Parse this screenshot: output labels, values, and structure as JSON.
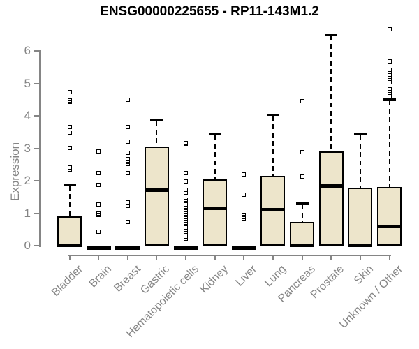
{
  "chart_data": {
    "type": "boxplot",
    "title": "ENSG00000225655 - RP11-143M1.2",
    "ylabel": "Expression",
    "xlabel": "",
    "ylim": [
      0,
      6.7
    ],
    "yticks": [
      0,
      1,
      2,
      3,
      4,
      5,
      6
    ],
    "grid": false,
    "legend": null,
    "colors": {
      "box_fill": "#EDE5CB",
      "box_stroke": "#000000",
      "axis": "#858585",
      "title": "#000000"
    },
    "categories": [
      "Bladder",
      "Brain",
      "Breast",
      "Gastric",
      "Hematopoietic cells",
      "Kidney",
      "Liver",
      "Lung",
      "Pancreas",
      "Prostate",
      "Skin",
      "Unknown / Other"
    ],
    "boxes": [
      {
        "category": "Bladder",
        "q1": 0,
        "median": 0.03,
        "q3": 0.9,
        "whisker_low": 0,
        "whisker_high": 1.9,
        "outliers": [
          2.35,
          2.41,
          3.02,
          3.48,
          3.66,
          4.42,
          4.47,
          4.74
        ]
      },
      {
        "category": "Brain",
        "q1": 0,
        "median": 0.02,
        "q3": 0.04,
        "whisker_low": 0,
        "whisker_high": 0.04,
        "outliers": [
          0.43,
          0.95,
          0.99,
          1.27,
          1.87,
          2.24,
          2.9
        ]
      },
      {
        "category": "Breast",
        "q1": 0,
        "median": 0.02,
        "q3": 0.04,
        "whisker_low": 0,
        "whisker_high": 0.04,
        "outliers": [
          0.73,
          1.23,
          1.33,
          2.24,
          2.52,
          2.59,
          2.66,
          2.86,
          3.2,
          3.66,
          4.49
        ]
      },
      {
        "category": "Gastric",
        "q1": 0,
        "median": 1.72,
        "q3": 3.05,
        "whisker_low": 0,
        "whisker_high": 3.87,
        "outliers": []
      },
      {
        "category": "Hematopoietic cells",
        "q1": 0,
        "median": 0.02,
        "q3": 0.04,
        "whisker_low": 0,
        "whisker_high": 0.04,
        "outliers": [
          0.22,
          0.28,
          0.33,
          0.39,
          0.44,
          0.5,
          0.55,
          0.61,
          0.66,
          0.72,
          0.77,
          0.83,
          0.88,
          0.94,
          0.99,
          1.05,
          1.1,
          1.16,
          1.21,
          1.27,
          1.32,
          1.38,
          1.43,
          1.63,
          1.72,
          1.98,
          2.24,
          3.14,
          3.17
        ]
      },
      {
        "category": "Kidney",
        "q1": 0,
        "median": 1.17,
        "q3": 2.05,
        "whisker_low": 0,
        "whisker_high": 3.44,
        "outliers": []
      },
      {
        "category": "Liver",
        "q1": 0,
        "median": 0.02,
        "q3": 0.04,
        "whisker_low": 0,
        "whisker_high": 0.04,
        "outliers": [
          0.84,
          0.89,
          0.94,
          1.57,
          2.19
        ]
      },
      {
        "category": "Lung",
        "q1": 0,
        "median": 1.12,
        "q3": 2.15,
        "whisker_low": 0,
        "whisker_high": 4.05,
        "outliers": []
      },
      {
        "category": "Pancreas",
        "q1": 0,
        "median": 0.03,
        "q3": 0.74,
        "whisker_low": 0,
        "whisker_high": 1.31,
        "outliers": [
          2.13,
          2.88,
          4.45
        ]
      },
      {
        "category": "Prostate",
        "q1": 0,
        "median": 1.85,
        "q3": 2.9,
        "whisker_low": 0,
        "whisker_high": 6.52,
        "outliers": []
      },
      {
        "category": "Skin",
        "q1": 0,
        "median": 0.03,
        "q3": 1.78,
        "whisker_low": 0,
        "whisker_high": 3.45,
        "outliers": []
      },
      {
        "category": "Unknown / Other",
        "q1": 0,
        "median": 0.6,
        "q3": 1.81,
        "whisker_low": 0,
        "whisker_high": 4.52,
        "outliers": [
          4.6,
          4.67,
          4.74,
          4.82,
          5.03,
          5.1,
          5.17,
          5.25,
          5.31,
          5.42,
          5.68,
          6.67
        ]
      }
    ]
  }
}
